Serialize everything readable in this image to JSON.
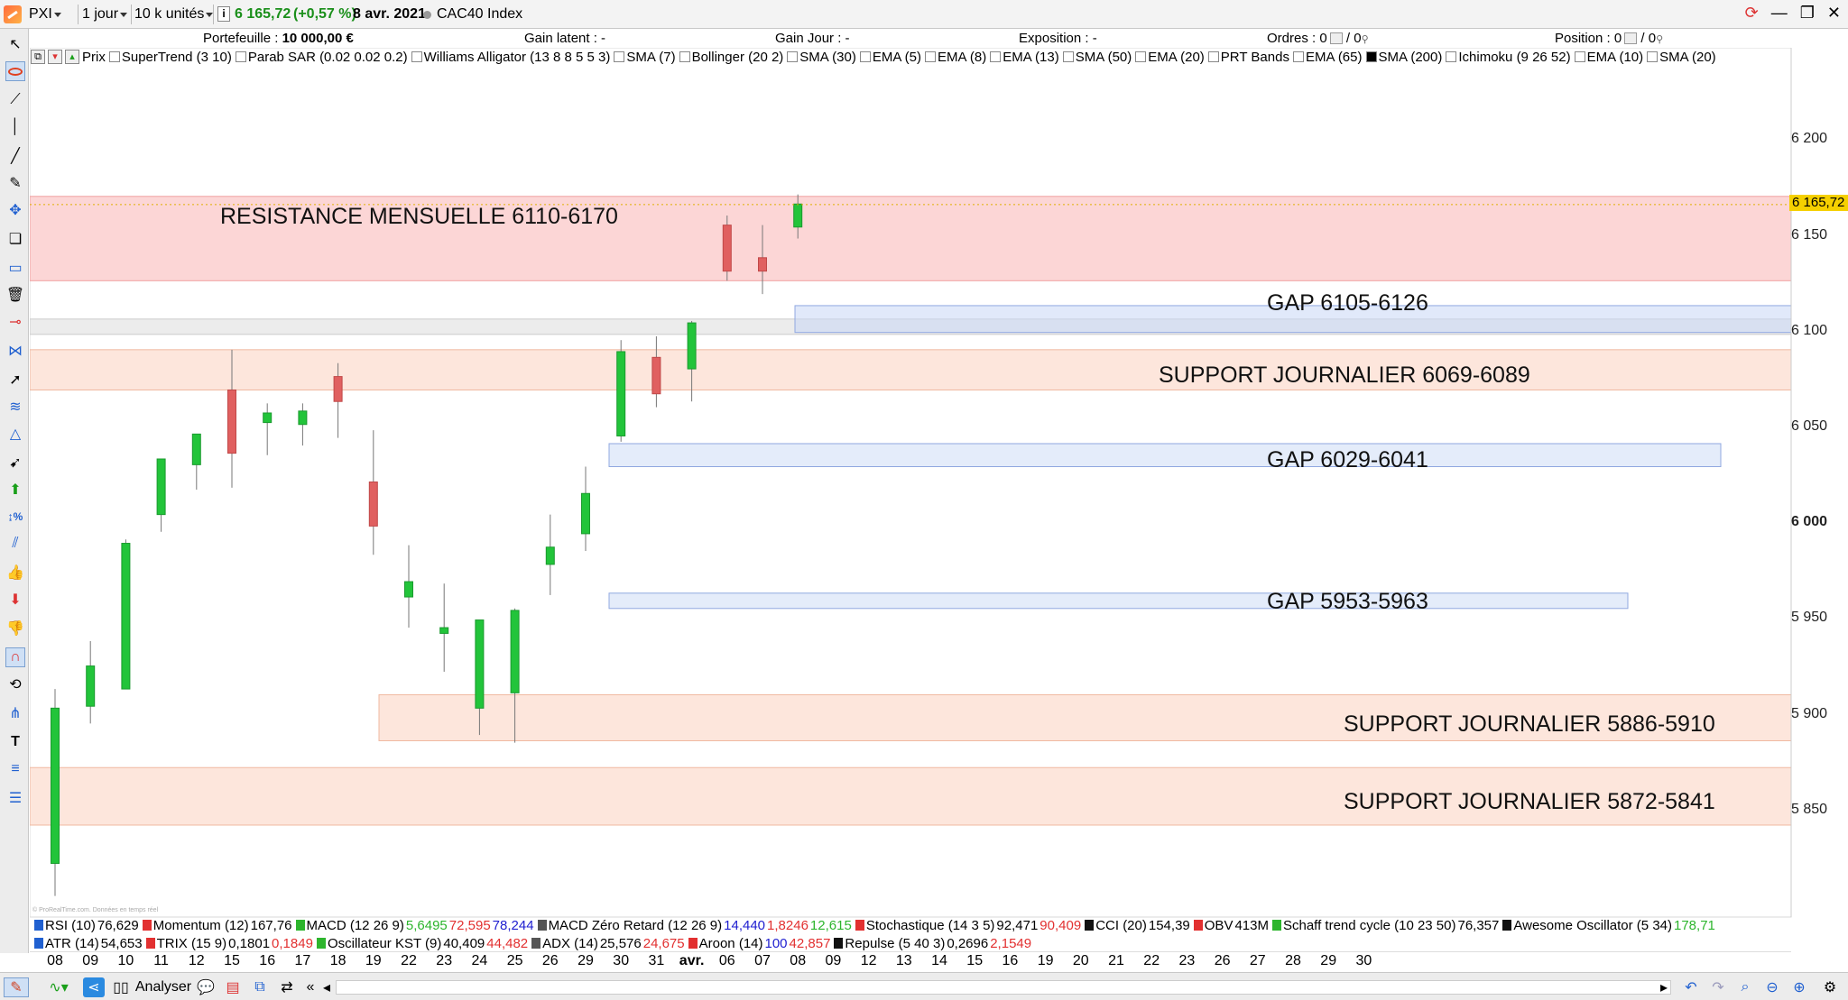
{
  "topbar": {
    "portfolio_select": "PXI",
    "timeframe_select": "1 jour",
    "units_select": "10 k unités",
    "price": "6 165,72",
    "change": "(+0,57 %)",
    "date": "8 avr. 2021",
    "instrument": "CAC40 Index"
  },
  "infobar": {
    "portefeuille_label": "Portefeuille :",
    "portefeuille_value": "10 000,00 €",
    "gain_latent": "Gain latent : -",
    "gain_jour": "Gain Jour : -",
    "exposition": "Exposition : -",
    "ordres_label": "Ordres :",
    "ordres_a": "0",
    "ordres_b": "/ 0",
    "position_label": "Position :",
    "position_a": "0",
    "position_b": "/ 0"
  },
  "indicators_top": [
    "Prix",
    "SuperTrend (3 10)",
    "Parab SAR (0.02 0.02 0.2)",
    "Williams Alligator (13 8 8 5 5 3)",
    "SMA (7)",
    "Bollinger (20 2)",
    "SMA (30)",
    "EMA (5)",
    "EMA (8)",
    "EMA (13)",
    "SMA (50)",
    "EMA (20)",
    "PRT Bands",
    "EMA (65)",
    "SMA (200)",
    "Ichimoku (9 26 52)",
    "EMA (10)",
    "SMA (20)"
  ],
  "zones": {
    "resistance": "RESISTANCE MENSUELLE 6110-6170",
    "gap1": "GAP 6105-6126",
    "support1": "SUPPORT JOURNALIER 6069-6089",
    "gap2": "GAP 6029-6041",
    "gap3": "GAP 5953-5963",
    "support2": "SUPPORT JOURNALIER 5886-5910",
    "support3": "SUPPORT JOURNALIER 5872-5841"
  },
  "y_axis": {
    "labels": [
      "6 200",
      "6 150",
      "6 100",
      "6 050",
      "6 000",
      "5 950",
      "5 900",
      "5 850"
    ],
    "current": "6 165,72"
  },
  "watermark": "© ProRealTime.com. Données en temps réel",
  "indicator_strip_1": [
    {
      "name": "RSI (10)",
      "vals": [
        {
          "t": "76,629",
          "c": "black"
        }
      ]
    },
    {
      "name": "Momentum (12)",
      "vals": [
        {
          "t": "167,76",
          "c": "black"
        }
      ]
    },
    {
      "name": "MACD (12 26 9)",
      "vals": [
        {
          "t": "5,6495",
          "c": "green"
        },
        {
          "t": "72,595",
          "c": "red"
        },
        {
          "t": "78,244",
          "c": "blue"
        }
      ]
    },
    {
      "name": "MACD Zéro Retard (12 26 9)",
      "vals": [
        {
          "t": "14,440",
          "c": "blue"
        },
        {
          "t": "1,8246",
          "c": "red"
        },
        {
          "t": "12,615",
          "c": "green"
        }
      ]
    },
    {
      "name": "Stochastique (14 3 5)",
      "vals": [
        {
          "t": "92,471",
          "c": "black"
        },
        {
          "t": "90,409",
          "c": "red"
        }
      ]
    },
    {
      "name": "CCI (20)",
      "vals": [
        {
          "t": "154,39",
          "c": "black"
        }
      ]
    },
    {
      "name": "OBV",
      "vals": [
        {
          "t": "413M",
          "c": "black"
        }
      ]
    },
    {
      "name": "Schaff trend cycle (10 23 50)",
      "vals": [
        {
          "t": "76,357",
          "c": "black"
        }
      ]
    },
    {
      "name": "Awesome Oscillator (5 34)",
      "vals": [
        {
          "t": "178,71",
          "c": "green"
        }
      ]
    }
  ],
  "indicator_strip_2": [
    {
      "name": "ATR (14)",
      "vals": [
        {
          "t": "54,653",
          "c": "black"
        }
      ]
    },
    {
      "name": "TRIX (15 9)",
      "vals": [
        {
          "t": "0,1801",
          "c": "black"
        },
        {
          "t": "0,1849",
          "c": "red"
        }
      ]
    },
    {
      "name": "Oscillateur KST (9)",
      "vals": [
        {
          "t": "40,409",
          "c": "black"
        },
        {
          "t": "44,482",
          "c": "red"
        }
      ]
    },
    {
      "name": "ADX (14)",
      "vals": [
        {
          "t": "25,576",
          "c": "black"
        },
        {
          "t": "24,675",
          "c": "red"
        }
      ]
    },
    {
      "name": "Aroon (14)",
      "vals": [
        {
          "t": "100",
          "c": "blue"
        },
        {
          "t": "42,857",
          "c": "red"
        }
      ]
    },
    {
      "name": "Repulse (5 40 3)",
      "vals": [
        {
          "t": "0,2696",
          "c": "black"
        },
        {
          "t": "2,1549",
          "c": "red"
        }
      ]
    }
  ],
  "date_axis": [
    "08",
    "09",
    "10",
    "11",
    "12",
    "15",
    "16",
    "17",
    "18",
    "19",
    "22",
    "23",
    "24",
    "25",
    "26",
    "29",
    "30",
    "31",
    "avr.",
    "06",
    "07",
    "08",
    "09",
    "12",
    "13",
    "14",
    "15",
    "16",
    "19",
    "20",
    "21",
    "22",
    "23",
    "26",
    "27",
    "28",
    "29",
    "30"
  ],
  "bottombar": {
    "analyser_label": "Analyser"
  },
  "colors": {
    "up": "#22c43a",
    "down": "#e06060",
    "resistance_fill": "#fcd6d6",
    "support_fill": "#fde6dc",
    "gap_fill": "#e4ecfa"
  },
  "chart_data": {
    "type": "candlestick",
    "y_range": [
      5800,
      6225
    ],
    "candles": [
      {
        "d": "08",
        "o": 5822,
        "h": 5913,
        "l": 5805,
        "c": 5903
      },
      {
        "d": "09",
        "o": 5904,
        "h": 5938,
        "l": 5895,
        "c": 5925
      },
      {
        "d": "10",
        "o": 5913,
        "h": 5991,
        "l": 5913,
        "c": 5989
      },
      {
        "d": "11",
        "o": 6004,
        "h": 6033,
        "l": 5995,
        "c": 6033
      },
      {
        "d": "12",
        "o": 6030,
        "h": 6046,
        "l": 6017,
        "c": 6046
      },
      {
        "d": "15",
        "o": 6069,
        "h": 6090,
        "l": 6018,
        "c": 6036
      },
      {
        "d": "16",
        "o": 6052,
        "h": 6062,
        "l": 6035,
        "c": 6057
      },
      {
        "d": "17",
        "o": 6051,
        "h": 6062,
        "l": 6040,
        "c": 6058
      },
      {
        "d": "18",
        "o": 6076,
        "h": 6083,
        "l": 6044,
        "c": 6063
      },
      {
        "d": "19",
        "o": 6021,
        "h": 6048,
        "l": 5983,
        "c": 5998
      },
      {
        "d": "22",
        "o": 5961,
        "h": 5988,
        "l": 5945,
        "c": 5969
      },
      {
        "d": "23",
        "o": 5942,
        "h": 5968,
        "l": 5922,
        "c": 5945
      },
      {
        "d": "24",
        "o": 5903,
        "h": 5948,
        "l": 5889,
        "c": 5949
      },
      {
        "d": "25",
        "o": 5911,
        "h": 5955,
        "l": 5885,
        "c": 5954
      },
      {
        "d": "26",
        "o": 5978,
        "h": 6004,
        "l": 5962,
        "c": 5987
      },
      {
        "d": "29",
        "o": 5994,
        "h": 6029,
        "l": 5985,
        "c": 6015
      },
      {
        "d": "30",
        "o": 6045,
        "h": 6095,
        "l": 6042,
        "c": 6089
      },
      {
        "d": "31",
        "o": 6086,
        "h": 6097,
        "l": 6060,
        "c": 6067
      },
      {
        "d": "avr.",
        "o": 6080,
        "h": 6105,
        "l": 6063,
        "c": 6104
      },
      {
        "d": "06",
        "o": 6155,
        "h": 6160,
        "l": 6126,
        "c": 6131
      },
      {
        "d": "07",
        "o": 6138,
        "h": 6155,
        "l": 6119,
        "c": 6131
      },
      {
        "d": "08",
        "o": 6154,
        "h": 6171,
        "l": 6148,
        "c": 6166
      }
    ]
  }
}
